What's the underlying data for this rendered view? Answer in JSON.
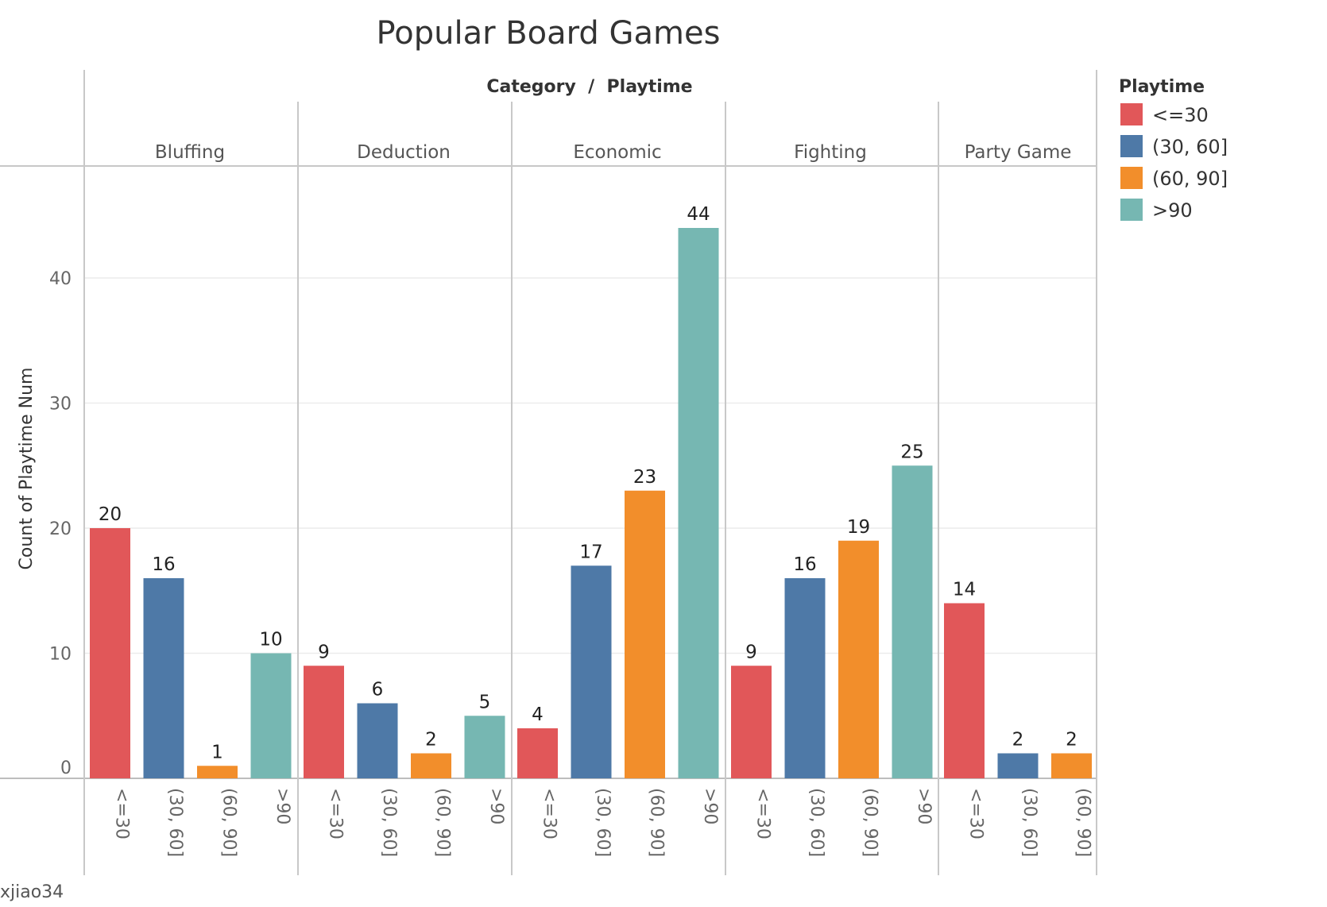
{
  "chart_data": {
    "type": "bar",
    "title": "Popular Board Games",
    "column_header": "Category  /  Playtime",
    "ylabel": "Count of Playtime Num",
    "ylim": [
      0,
      48
    ],
    "yticks": [
      0,
      10,
      20,
      30,
      40
    ],
    "grid": true,
    "legend": {
      "title": "Playtime",
      "position": "right",
      "items": [
        {
          "label": "<=30",
          "color": "#E15759"
        },
        {
          "label": "(30, 60]",
          "color": "#4E79A7"
        },
        {
          "label": "(60, 90]",
          "color": "#F28E2B"
        },
        {
          "label": ">90",
          "color": "#76B7B2"
        }
      ]
    },
    "categories": [
      {
        "name": "Bluffing",
        "bars": [
          {
            "playtime": "<=30",
            "value": 20
          },
          {
            "playtime": "(30, 60]",
            "value": 16
          },
          {
            "playtime": "(60, 90]",
            "value": 1
          },
          {
            "playtime": ">90",
            "value": 10
          }
        ]
      },
      {
        "name": "Deduction",
        "bars": [
          {
            "playtime": "<=30",
            "value": 9
          },
          {
            "playtime": "(30, 60]",
            "value": 6
          },
          {
            "playtime": "(60, 90]",
            "value": 2
          },
          {
            "playtime": ">90",
            "value": 5
          }
        ]
      },
      {
        "name": "Economic",
        "bars": [
          {
            "playtime": "<=30",
            "value": 4
          },
          {
            "playtime": "(30, 60]",
            "value": 17
          },
          {
            "playtime": "(60, 90]",
            "value": 23
          },
          {
            "playtime": ">90",
            "value": 44
          }
        ]
      },
      {
        "name": "Fighting",
        "bars": [
          {
            "playtime": "<=30",
            "value": 9
          },
          {
            "playtime": "(30, 60]",
            "value": 16
          },
          {
            "playtime": "(60, 90]",
            "value": 19
          },
          {
            "playtime": ">90",
            "value": 25
          }
        ]
      },
      {
        "name": "Party Game",
        "bars": [
          {
            "playtime": "<=30",
            "value": 14
          },
          {
            "playtime": "(30, 60]",
            "value": 2
          },
          {
            "playtime": "(60, 90]",
            "value": 2
          }
        ]
      }
    ]
  },
  "author": "xjiao34"
}
